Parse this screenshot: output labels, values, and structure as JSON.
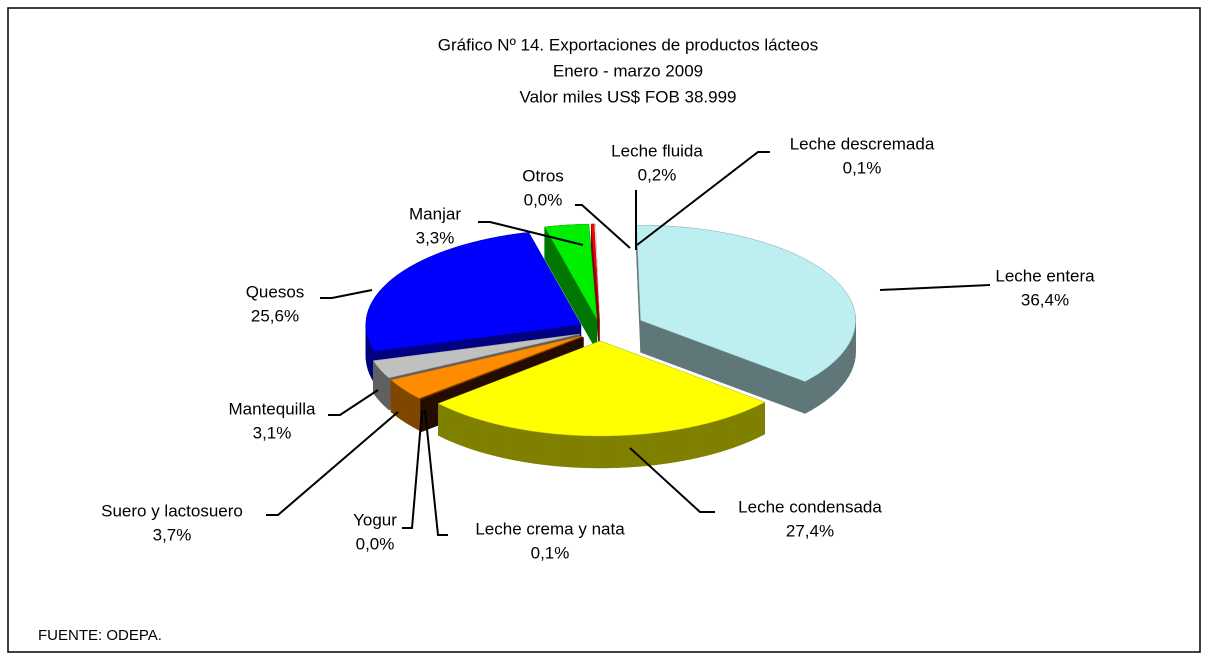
{
  "chart_data": {
    "type": "pie3d",
    "title": "Gráfico Nº 14. Exportaciones de productos lácteos",
    "subtitle": "Enero - marzo 2009",
    "subtitle2": "Valor miles US$ FOB 38.999",
    "source": "FUENTE: ODEPA.",
    "categories": [
      "Leche descremada",
      "Leche entera",
      "Leche condensada",
      "Leche crema y nata",
      "Yogur",
      "Suero y lactosuero",
      "Mantequilla",
      "Quesos",
      "Manjar",
      "Otros",
      "Leche fluida"
    ],
    "values": [
      0.1,
      36.4,
      27.4,
      0.1,
      0.0,
      3.7,
      3.1,
      25.6,
      3.3,
      0.0,
      0.2
    ],
    "value_labels": [
      "0,1%",
      "36,4%",
      "27,4%",
      "0,1%",
      "0,0%",
      "3,7%",
      "3,1%",
      "25,6%",
      "3,3%",
      "0,0%",
      "0,2%"
    ],
    "colors": [
      "#f0f0f0",
      "#bdeef0",
      "#ffff00",
      "#4a1800",
      "#9999ff",
      "#ff8c00",
      "#c0c0c0",
      "#0000ff",
      "#00ee00",
      "#800080",
      "#ff0000"
    ]
  }
}
